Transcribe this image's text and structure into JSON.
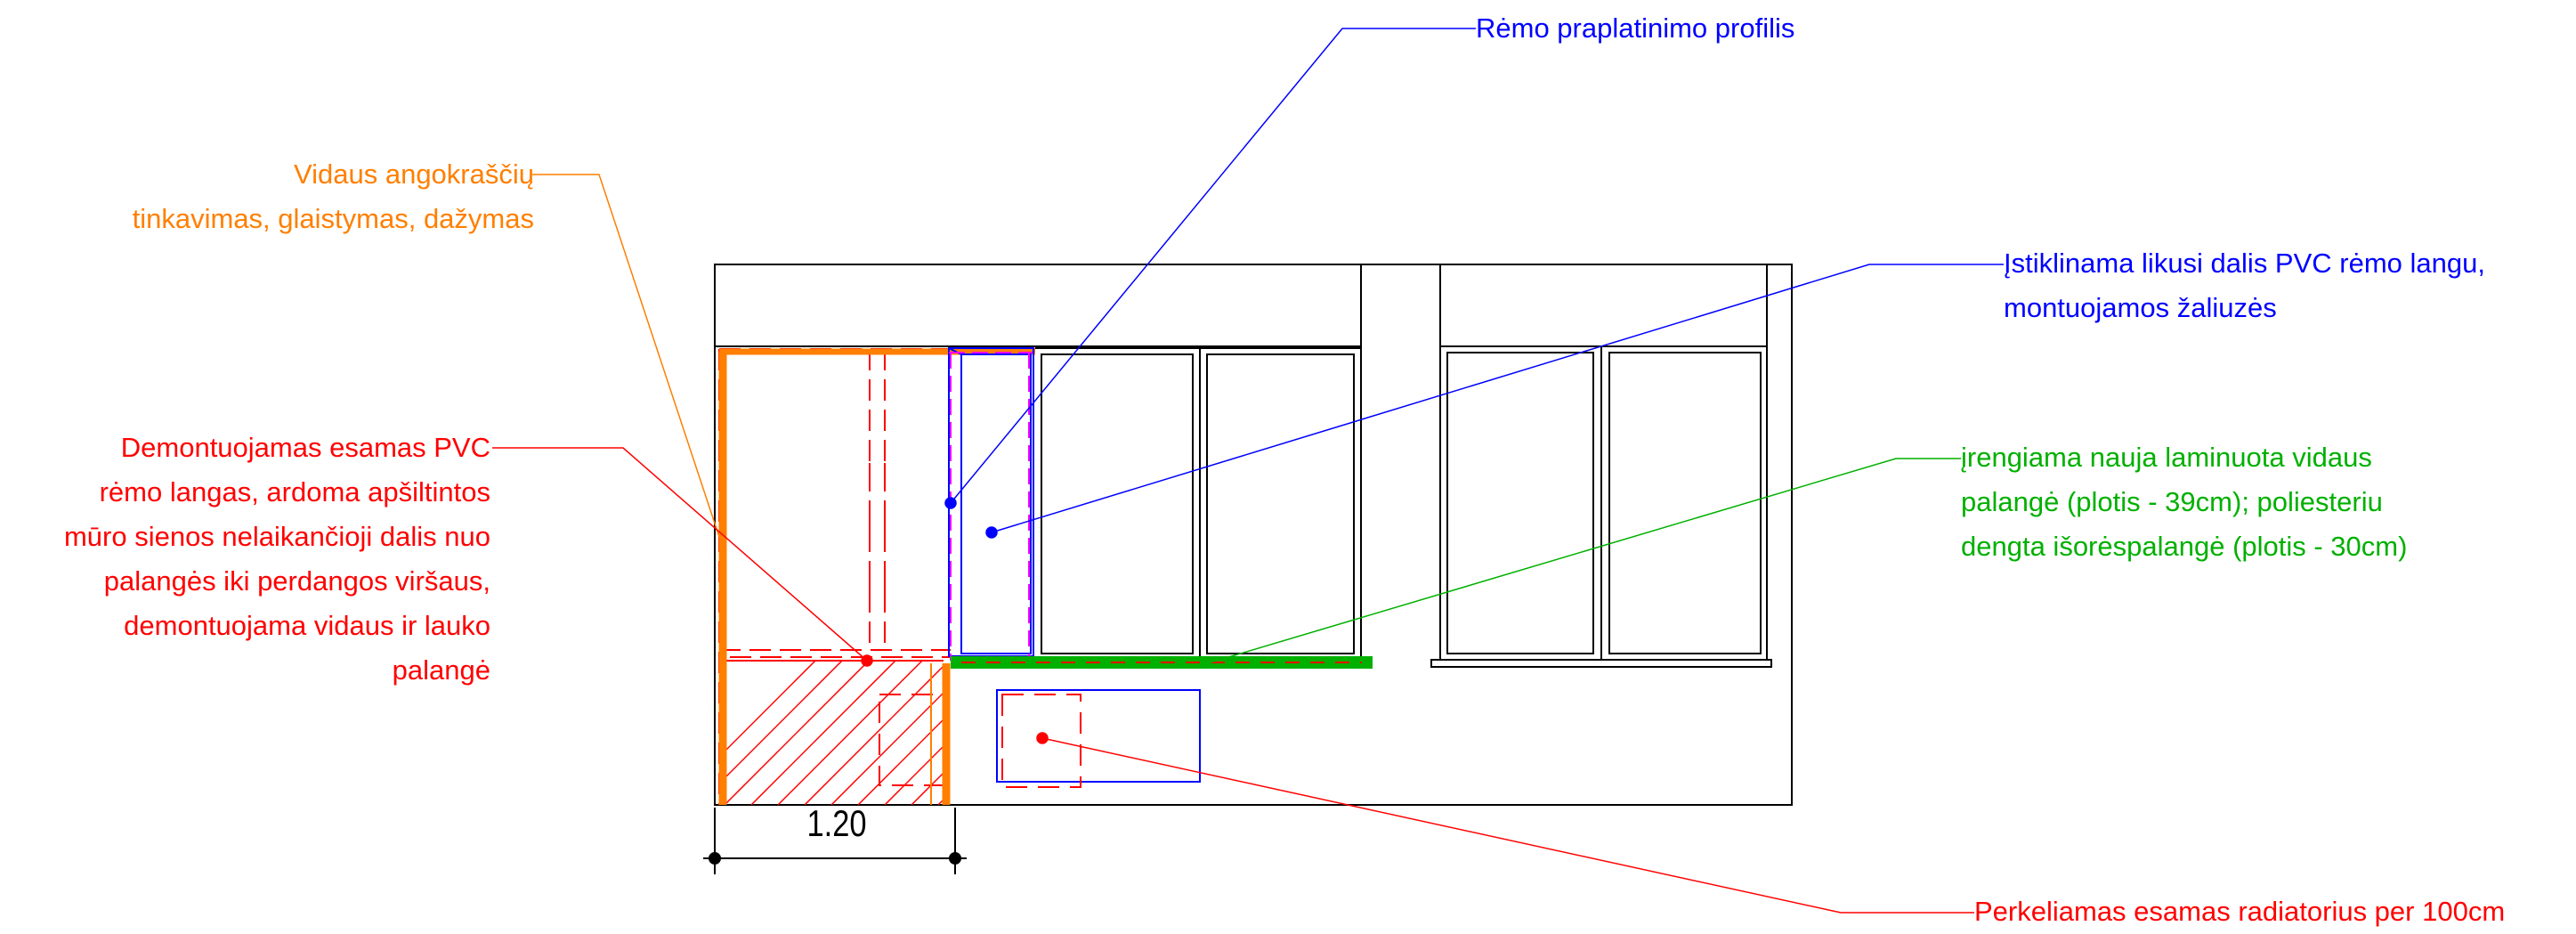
{
  "colors": {
    "frame_blue": "#0000ff",
    "orange": "#ff7f00",
    "red": "#ff0000",
    "green": "#00b000",
    "magenta": "#ff00ff",
    "black": "#000000"
  },
  "labels": {
    "frame_profile": [
      "Rėmo praplatinimo profilis"
    ],
    "glazing": [
      "Įstiklinama likusi dalis PVC rėmo langu,",
      "montuojamos žaliuzės"
    ],
    "sill": [
      "įrengiama nauja laminuota vidaus",
      "palangė (plotis - 39cm); poliesteriu",
      "dengta išorėspalangė (plotis - 30cm)"
    ],
    "radiator": [
      "Perkeliamas esamas radiatorius per 100cm"
    ],
    "reveal": [
      "Vidaus angokraščių",
      "tinkavimas, glaistymas, dažymas"
    ],
    "demount": [
      "Demontuojamas esamas PVC",
      "rėmo langas, ardoma apšiltintos",
      "mūro sienos nelaikančioji dalis nuo",
      "palangės iki perdangos viršaus,",
      "demontuojama vidaus ir lauko",
      "palangė"
    ]
  },
  "dimension": {
    "value": "1.20"
  }
}
